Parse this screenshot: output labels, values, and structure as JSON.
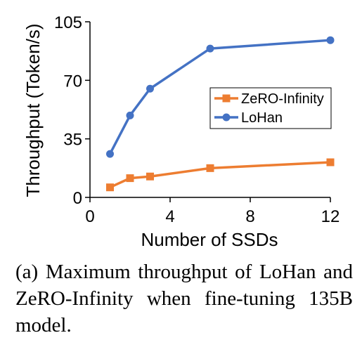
{
  "chart_data": {
    "type": "line",
    "xlabel": "Number of SSDs",
    "ylabel": "Throughput (Token/s)",
    "xlim": [
      0,
      12
    ],
    "ylim": [
      0,
      105
    ],
    "xticks": [
      0,
      4,
      8,
      12
    ],
    "yticks": [
      0,
      35,
      70,
      105
    ],
    "grid": false,
    "legend_position": "center-right",
    "series": [
      {
        "name": "ZeRO-Infinity",
        "marker": "square",
        "color": "#ED7D31",
        "points": [
          [
            1,
            6
          ],
          [
            2,
            11.5
          ],
          [
            3,
            12.5
          ],
          [
            6,
            17.5
          ],
          [
            12,
            21
          ]
        ]
      },
      {
        "name": "LoHan",
        "marker": "circle",
        "color": "#4472C4",
        "points": [
          [
            1,
            26
          ],
          [
            2,
            49
          ],
          [
            3,
            65
          ],
          [
            6,
            89
          ],
          [
            12,
            94
          ]
        ]
      }
    ]
  },
  "caption": "(a) Maximum throughput of LoHan and ZeRO-Infinity when fine-tuning 135B model."
}
